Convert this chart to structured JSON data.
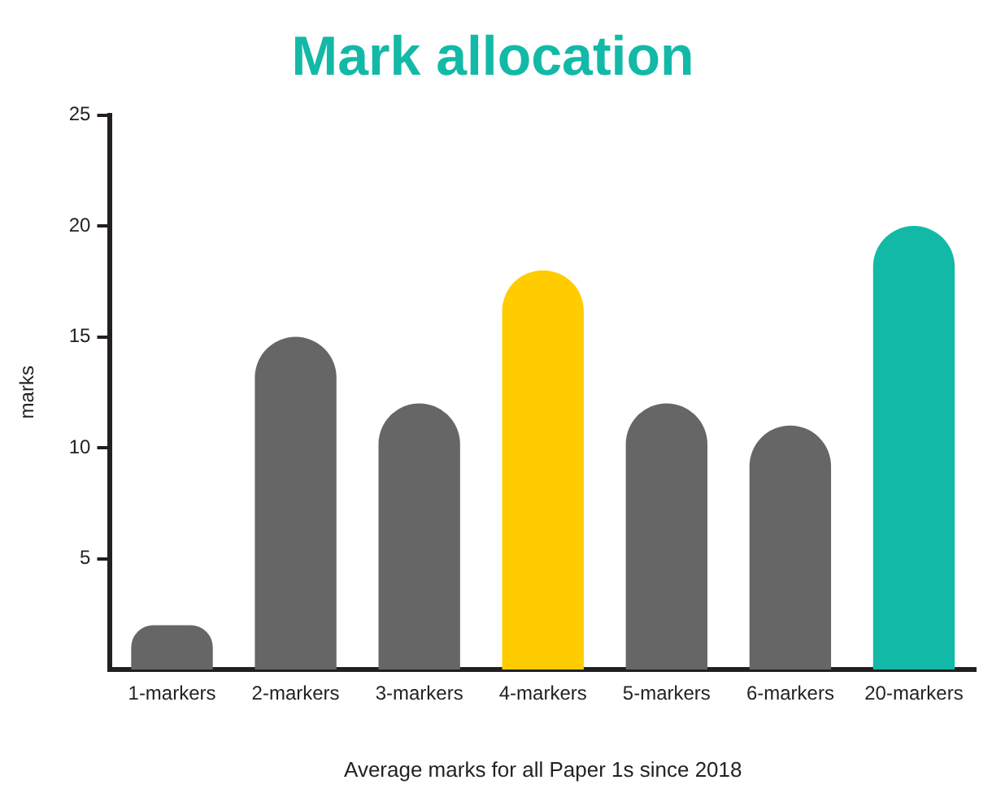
{
  "chart_data": {
    "type": "bar",
    "title": "Mark allocation",
    "xlabel": "Average marks for all Paper 1s since 2018",
    "ylabel": "marks",
    "categories": [
      "1-markers",
      "2-markers",
      "3-markers",
      "4-markers",
      "5-markers",
      "6-markers",
      "20-markers"
    ],
    "values": [
      2,
      15,
      12,
      18,
      12,
      11,
      20
    ],
    "colors": [
      "#666666",
      "#666666",
      "#666666",
      "#ffcc00",
      "#666666",
      "#666666",
      "#13b9a7"
    ],
    "ylim": [
      0,
      25
    ],
    "yticks": [
      5,
      10,
      15,
      20,
      25
    ],
    "grid": false,
    "legend": false
  }
}
